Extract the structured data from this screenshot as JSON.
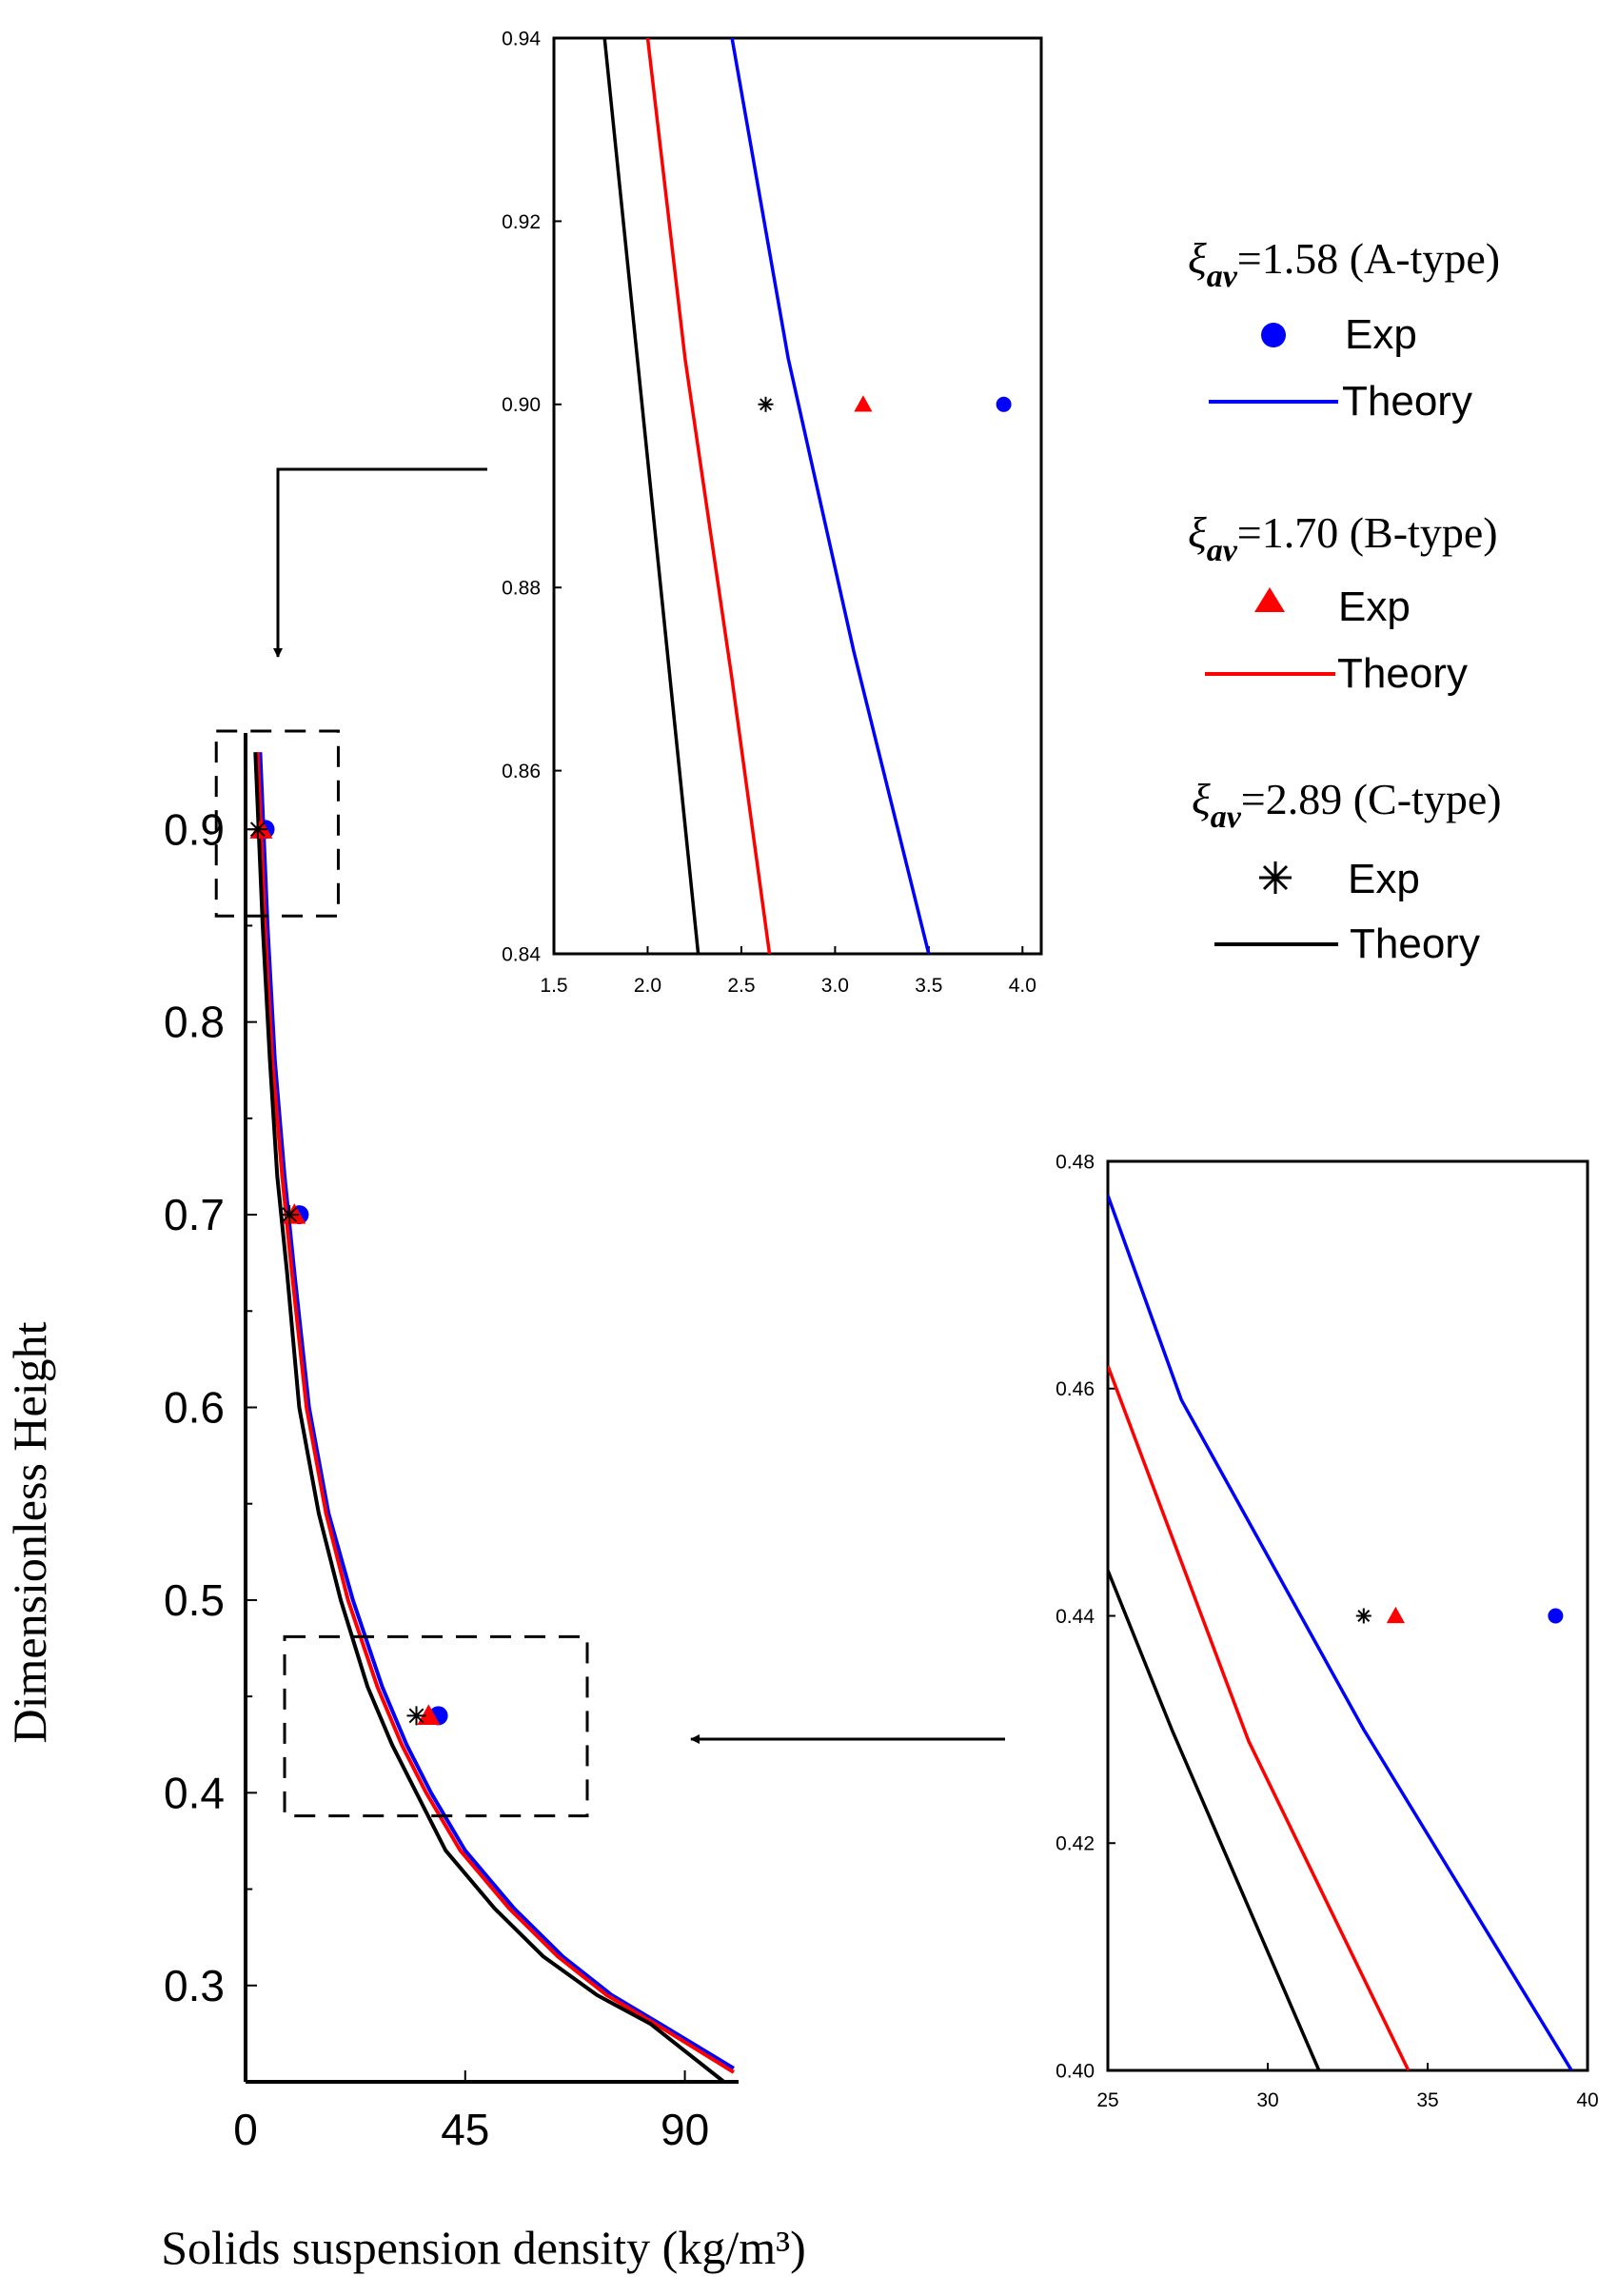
{
  "chart_data": [
    {
      "id": "main",
      "type": "line",
      "xlabel": "Solids suspension density (kg/m³)",
      "ylabel": "Dimensionless Height",
      "xlim": [
        0,
        101
      ],
      "ylim": [
        0.25,
        0.95
      ],
      "xticks": [
        0,
        45,
        90
      ],
      "xtick_labels": [
        "0",
        "45",
        "90"
      ],
      "yticks": [
        0.3,
        0.4,
        0.5,
        0.6,
        0.7,
        0.8,
        0.9
      ],
      "ytick_labels": [
        "0.3",
        "0.4",
        "0.5",
        "0.6",
        "0.7",
        "0.8",
        "0.9"
      ],
      "zoom_boxes": [
        {
          "name": "upper-zoom-box",
          "x": [
            -6,
            19
          ],
          "y": [
            0.855,
            0.951
          ]
        },
        {
          "name": "lower-zoom-box",
          "x": [
            8,
            70
          ],
          "y": [
            0.388,
            0.481
          ]
        }
      ],
      "series": [
        {
          "name": "A-type Theory",
          "color": "#0000ff",
          "points": [
            [
              3,
              0.94
            ],
            [
              4.5,
              0.85
            ],
            [
              6,
              0.78
            ],
            [
              8,
              0.72
            ],
            [
              10,
              0.67
            ],
            [
              13,
              0.6
            ],
            [
              17,
              0.545
            ],
            [
              22,
              0.5
            ],
            [
              28,
              0.455
            ],
            [
              33,
              0.425
            ],
            [
              38,
              0.4
            ],
            [
              45,
              0.37
            ],
            [
              55,
              0.34
            ],
            [
              65,
              0.315
            ],
            [
              75,
              0.295
            ],
            [
              85,
              0.28
            ],
            [
              100,
              0.257
            ]
          ]
        },
        {
          "name": "B-type Theory",
          "color": "#ff0000",
          "points": [
            [
              2.5,
              0.94
            ],
            [
              4,
              0.85
            ],
            [
              5.5,
              0.78
            ],
            [
              7.5,
              0.72
            ],
            [
              9.5,
              0.67
            ],
            [
              12.5,
              0.6
            ],
            [
              16.5,
              0.545
            ],
            [
              21,
              0.5
            ],
            [
              27,
              0.455
            ],
            [
              32,
              0.425
            ],
            [
              37,
              0.4
            ],
            [
              44,
              0.37
            ],
            [
              54,
              0.34
            ],
            [
              64,
              0.315
            ],
            [
              74,
              0.295
            ],
            [
              84,
              0.28
            ],
            [
              100,
              0.255
            ]
          ]
        },
        {
          "name": "C-type Theory",
          "color": "#000000",
          "points": [
            [
              2,
              0.94
            ],
            [
              3.5,
              0.85
            ],
            [
              5,
              0.78
            ],
            [
              6.5,
              0.72
            ],
            [
              8.5,
              0.67
            ],
            [
              11,
              0.6
            ],
            [
              15,
              0.545
            ],
            [
              19.5,
              0.5
            ],
            [
              25,
              0.455
            ],
            [
              30,
              0.425
            ],
            [
              35,
              0.4
            ],
            [
              41,
              0.37
            ],
            [
              51,
              0.34
            ],
            [
              61,
              0.315
            ],
            [
              72,
              0.295
            ],
            [
              83,
              0.28
            ],
            [
              98,
              0.25
            ]
          ]
        }
      ],
      "scatter": [
        {
          "name": "A-type Exp",
          "marker": "circle",
          "color": "#0000ff",
          "points": [
            [
              4,
              0.9
            ],
            [
              11,
              0.7
            ],
            [
              39.5,
              0.44
            ]
          ]
        },
        {
          "name": "B-type Exp",
          "marker": "triangle",
          "color": "#ff0000",
          "points": [
            [
              3.2,
              0.9
            ],
            [
              10,
              0.7
            ],
            [
              37.5,
              0.44
            ]
          ]
        },
        {
          "name": "C-type Exp",
          "marker": "star",
          "color": "#000000",
          "points": [
            [
              2.5,
              0.9
            ],
            [
              9,
              0.7
            ],
            [
              35,
              0.44
            ]
          ]
        }
      ]
    },
    {
      "id": "inset_top",
      "type": "line",
      "xlim": [
        1.5,
        4.1
      ],
      "ylim": [
        0.84,
        0.94
      ],
      "xticks": [
        1.5,
        2.0,
        2.5,
        3.0,
        3.5,
        4.0
      ],
      "xtick_labels": [
        "1.5",
        "2.0",
        "2.5",
        "3.0",
        "3.5",
        "4.0"
      ],
      "yticks": [
        0.84,
        0.86,
        0.88,
        0.9,
        0.92,
        0.94
      ],
      "ytick_labels": [
        "0.84",
        "0.86",
        "0.88",
        "0.90",
        "0.92",
        "0.94"
      ],
      "series": [
        {
          "name": "A-type Theory",
          "color": "#0000ff",
          "points": [
            [
              2.45,
              0.94
            ],
            [
              2.75,
              0.905
            ],
            [
              3.1,
              0.873
            ],
            [
              3.5,
              0.84
            ]
          ]
        },
        {
          "name": "B-type Theory",
          "color": "#ff0000",
          "points": [
            [
              2.0,
              0.94
            ],
            [
              2.2,
              0.905
            ],
            [
              2.45,
              0.87
            ],
            [
              2.65,
              0.84
            ]
          ]
        },
        {
          "name": "C-type Theory",
          "color": "#000000",
          "points": [
            [
              1.77,
              0.94
            ],
            [
              2.27,
              0.84
            ]
          ]
        }
      ],
      "scatter": [
        {
          "name": "A-type Exp",
          "marker": "circle",
          "color": "#0000ff",
          "points": [
            [
              3.9,
              0.9
            ]
          ]
        },
        {
          "name": "B-type Exp",
          "marker": "triangle",
          "color": "#ff0000",
          "points": [
            [
              3.15,
              0.9
            ]
          ]
        },
        {
          "name": "C-type Exp",
          "marker": "star",
          "color": "#000000",
          "points": [
            [
              2.63,
              0.9
            ]
          ]
        }
      ]
    },
    {
      "id": "inset_bottom",
      "type": "line",
      "xlim": [
        25,
        40
      ],
      "ylim": [
        0.4,
        0.48
      ],
      "xticks": [
        25,
        30,
        35,
        40
      ],
      "xtick_labels": [
        "25",
        "30",
        "35",
        "40"
      ],
      "yticks": [
        0.4,
        0.42,
        0.44,
        0.46,
        0.48
      ],
      "ytick_labels": [
        "0.40",
        "0.42",
        "0.44",
        "0.46",
        "0.48"
      ],
      "series": [
        {
          "name": "A-type Theory",
          "color": "#0000ff",
          "points": [
            [
              25,
              0.477
            ],
            [
              27.3,
              0.459
            ],
            [
              33,
              0.43
            ],
            [
              39.5,
              0.4
            ]
          ]
        },
        {
          "name": "B-type Theory",
          "color": "#ff0000",
          "points": [
            [
              25,
              0.462
            ],
            [
              29.4,
              0.429
            ],
            [
              34.4,
              0.4
            ]
          ]
        },
        {
          "name": "C-type Theory",
          "color": "#000000",
          "points": [
            [
              25,
              0.444
            ],
            [
              27,
              0.43
            ],
            [
              31.6,
              0.4
            ]
          ]
        }
      ],
      "scatter": [
        {
          "name": "A-type Exp",
          "marker": "circle",
          "color": "#0000ff",
          "points": [
            [
              39,
              0.44
            ]
          ]
        },
        {
          "name": "B-type Exp",
          "marker": "triangle",
          "color": "#ff0000",
          "points": [
            [
              34,
              0.44
            ]
          ]
        },
        {
          "name": "C-type Exp",
          "marker": "star",
          "color": "#000000",
          "points": [
            [
              33,
              0.44
            ]
          ]
        }
      ]
    }
  ],
  "legend": {
    "groups": [
      {
        "symbol": "ξ",
        "subscript": "av",
        "value": "=1.58 (A-type)",
        "exp_label": "Exp",
        "theory_label": "Theory",
        "marker": "circle",
        "color": "#0000ff"
      },
      {
        "symbol": "ξ",
        "subscript": "av",
        "value": "=1.70 (B-type)",
        "exp_label": "Exp",
        "theory_label": "Theory",
        "marker": "triangle",
        "color": "#ff0000"
      },
      {
        "symbol": "ξ",
        "subscript": "av",
        "value": "=2.89 (C-type)",
        "exp_label": "Exp",
        "theory_label": "Theory",
        "marker": "star",
        "color": "#000000"
      }
    ]
  }
}
